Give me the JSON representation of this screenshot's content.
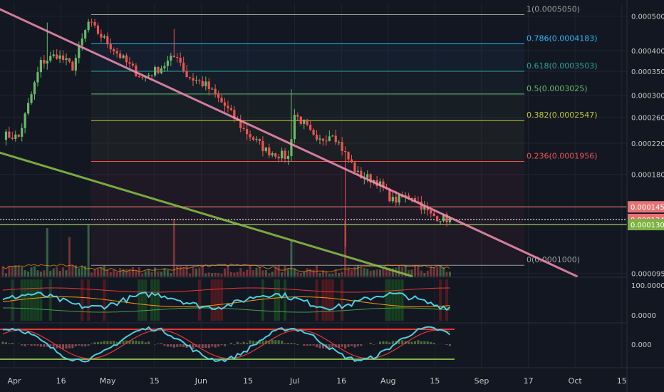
{
  "chart_data": {
    "type": "candlestick",
    "price_axis": {
      "scale": "log",
      "range": [
        9.3e-05,
        0.000545
      ],
      "ticks": [
        "0.0005000",
        "0.0004000",
        "0.0003500",
        "0.0003000",
        "0.0002600",
        "0.0002200",
        "0.0001800",
        "0.0000950"
      ],
      "tick_values": [
        0.0005,
        0.0004,
        0.00035,
        0.0003,
        0.00026,
        0.00022,
        0.00018,
        9.5e-05
      ]
    },
    "price_labels": [
      {
        "text": "0.0001459",
        "value": 0.0001459,
        "color": "#e57373"
      },
      {
        "text": "0.0001344",
        "value": 0.0001344,
        "color": "#e57373"
      },
      {
        "text": "0.0001301",
        "value": 0.0001301,
        "color": "#7cb342"
      }
    ],
    "time_axis": {
      "labels": [
        "Apr",
        "16",
        "May",
        "15",
        "Jun",
        "15",
        "Jul",
        "16",
        "Aug",
        "15",
        "Sep",
        "17",
        "Oct",
        "15"
      ]
    },
    "fibonacci": [
      {
        "label": "1(0.0005050)",
        "value": 0.000505,
        "color": "#9e9e9e"
      },
      {
        "label": "0.786(0.0004183)",
        "value": 0.0004183,
        "color": "#29b6f6"
      },
      {
        "label": "0.618(0.0003503)",
        "value": 0.0003503,
        "color": "#26a69a"
      },
      {
        "label": "0.5(0.0003025)",
        "value": 0.0003025,
        "color": "#66bb6a"
      },
      {
        "label": "0.382(0.0002547)",
        "value": 0.0002547,
        "color": "#c0ca33"
      },
      {
        "label": "0.236(0.0001956)",
        "value": 0.0001956,
        "color": "#ef5350"
      },
      {
        "label": "0(0.0001000)",
        "value": 0.0001,
        "color": "#9e9e9e"
      }
    ],
    "trendlines": [
      {
        "name": "descending-resistance",
        "color": "#f48fb1",
        "from": {
          "bar": -10,
          "price": 0.00057
        },
        "to": {
          "bar": 181,
          "price": 9.32e-05
        }
      },
      {
        "name": "descending-support",
        "color": "#8bc34a",
        "from": {
          "bar": -1,
          "price": 0.000207
        },
        "to": {
          "bar": 129,
          "price": 9.32e-05
        }
      }
    ],
    "horizontal_lines": [
      {
        "value": 0.0001459,
        "color": "#e57373"
      },
      {
        "value": 0.0001344,
        "color": "#e0e0e0",
        "dashed": true
      },
      {
        "value": 0.0001301,
        "color": "#9ccc65"
      }
    ],
    "oscillator_1": {
      "ticks": [
        "100.0000",
        "0.0000"
      ]
    },
    "oscillator_2": {
      "ticks": [
        "0.000"
      ]
    },
    "colors": {
      "background": "#131722",
      "up": "#66bb6a",
      "down": "#ef5350",
      "grid": "#1f2430",
      "axis_text": "#c8c8c8"
    },
    "series_start": "Apr 1",
    "bars": 141,
    "keypoints": [
      {
        "bar": 0,
        "price": 0.000232
      },
      {
        "bar": 5,
        "price": 0.000229
      },
      {
        "bar": 12,
        "price": 0.00037
      },
      {
        "bar": 17,
        "price": 0.00039
      },
      {
        "bar": 22,
        "price": 0.00036
      },
      {
        "bar": 27,
        "price": 0.00048
      },
      {
        "bar": 31,
        "price": 0.00044
      },
      {
        "bar": 39,
        "price": 0.00037
      },
      {
        "bar": 44,
        "price": 0.000335
      },
      {
        "bar": 50,
        "price": 0.00036
      },
      {
        "bar": 55,
        "price": 0.00039
      },
      {
        "bar": 58,
        "price": 0.00034
      },
      {
        "bar": 64,
        "price": 0.00032
      },
      {
        "bar": 70,
        "price": 0.00028
      },
      {
        "bar": 76,
        "price": 0.00024
      },
      {
        "bar": 83,
        "price": 0.00021
      },
      {
        "bar": 90,
        "price": 0.000201
      },
      {
        "bar": 92,
        "price": 0.000265
      },
      {
        "bar": 95,
        "price": 0.00025
      },
      {
        "bar": 99,
        "price": 0.00022
      },
      {
        "bar": 104,
        "price": 0.000237
      },
      {
        "bar": 108,
        "price": 0.000205
      },
      {
        "bar": 112,
        "price": 0.00018
      },
      {
        "bar": 118,
        "price": 0.000172
      },
      {
        "bar": 123,
        "price": 0.000152
      },
      {
        "bar": 129,
        "price": 0.000157
      },
      {
        "bar": 135,
        "price": 0.000138
      },
      {
        "bar": 141,
        "price": 0.0001344
      }
    ],
    "spikes": [
      {
        "bar": 14,
        "high": 0.00048
      },
      {
        "bar": 54,
        "high": 0.00046
      },
      {
        "bar": 91,
        "high": 0.000312
      },
      {
        "bar": 108,
        "low": 0.000113
      }
    ]
  }
}
